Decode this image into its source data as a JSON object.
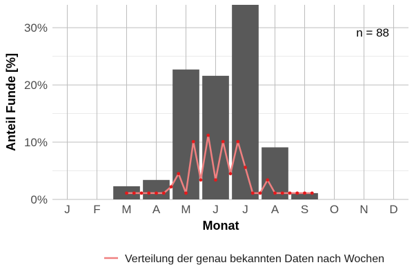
{
  "chart_data": {
    "type": "bar",
    "xlabel": "Monat",
    "ylabel": "Anteil Funde [%]",
    "annotation": "n = 88",
    "categories": [
      "J",
      "F",
      "M",
      "A",
      "M",
      "J",
      "J",
      "A",
      "S",
      "O",
      "N",
      "D"
    ],
    "values": [
      0,
      0,
      2.3,
      3.4,
      22.7,
      21.6,
      34.1,
      9.1,
      1.1,
      0,
      0,
      0
    ],
    "ylim": [
      0,
      34
    ],
    "yticks": [
      0,
      10,
      20,
      30
    ],
    "ytick_labels": [
      "0%",
      "10%",
      "20%",
      "30%"
    ],
    "grid": true,
    "legend_position": "bottom",
    "colors": {
      "bars": "#595959",
      "line": "#f08080",
      "points": "#e31a1c",
      "grid": "#bdbdbd"
    },
    "series": [
      {
        "name": "Verteilung der genau bekannten Daten nach Wochen",
        "type": "line",
        "x": [
          2.0,
          2.25,
          2.5,
          2.75,
          3.0,
          3.25,
          3.5,
          3.75,
          4.0,
          4.25,
          4.5,
          4.75,
          5.0,
          5.25,
          5.5,
          5.75,
          6.0,
          6.25,
          6.5,
          6.75,
          7.0,
          7.25,
          7.5,
          7.75,
          8.0,
          8.25
        ],
        "values": [
          1.1,
          1.1,
          1.1,
          1.1,
          1.1,
          1.1,
          2.2,
          4.5,
          1.1,
          10.1,
          3.4,
          11.2,
          3.4,
          10.1,
          4.5,
          10.1,
          5.6,
          1.1,
          1.1,
          3.4,
          1.1,
          1.1,
          1.1,
          1.1,
          1.1,
          1.1
        ]
      }
    ]
  }
}
